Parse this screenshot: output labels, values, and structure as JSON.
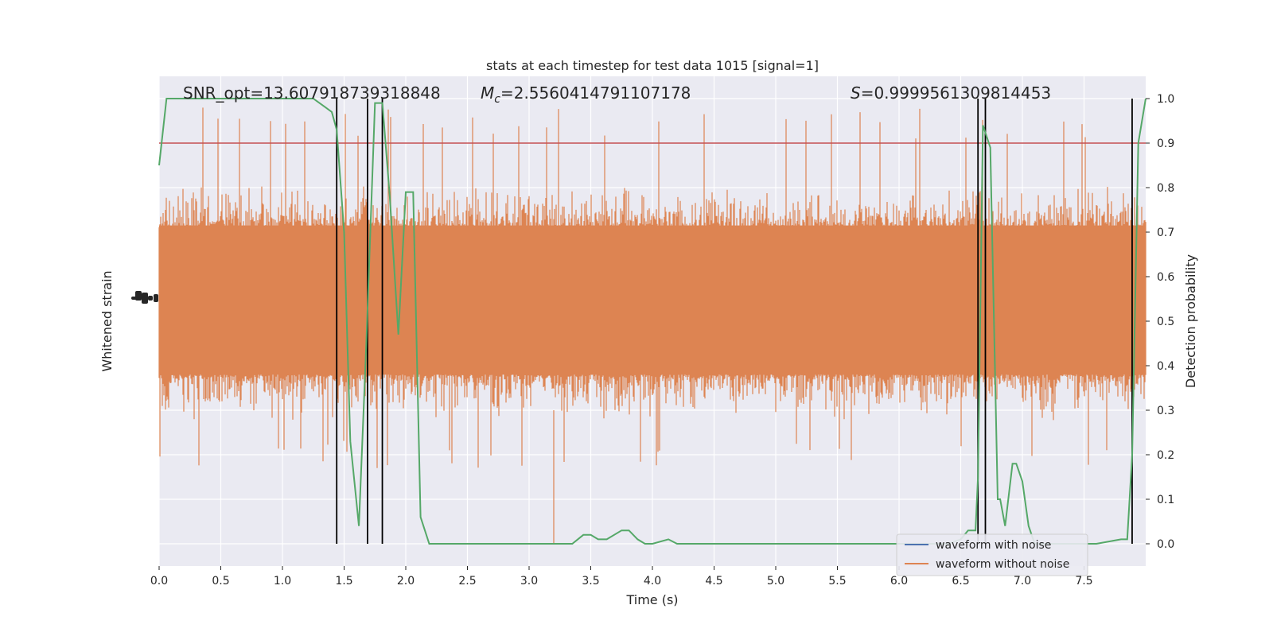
{
  "chart_data": {
    "type": "line",
    "title": "stats at each timestep for test data 1015 [signal=1]",
    "annotations": {
      "snr_text": "SNR_opt=13.607918739318848",
      "mc_symbol": "M",
      "mc_subscript": "c",
      "mc_value": "=2.5560414791107178",
      "s_symbol": "S",
      "s_value": "=0.9999561309814453"
    },
    "xlabel": "Time (s)",
    "ylabel_left": "Whitened strain",
    "ylabel_right": "Detection probability",
    "xlim": [
      0,
      8.0
    ],
    "ylim_right": [
      -0.05,
      1.05
    ],
    "x_ticks": [
      0.0,
      0.5,
      1.0,
      1.5,
      2.0,
      2.5,
      3.0,
      3.5,
      4.0,
      4.5,
      5.0,
      5.5,
      6.0,
      6.5,
      7.0,
      7.5
    ],
    "x_tick_labels": [
      "0.0",
      "0.5",
      "1.0",
      "1.5",
      "2.0",
      "2.5",
      "3.0",
      "3.5",
      "4.0",
      "4.5",
      "5.0",
      "5.5",
      "6.0",
      "6.5",
      "7.0",
      "7.5"
    ],
    "y_right_ticks": [
      0.0,
      0.1,
      0.2,
      0.3,
      0.4,
      0.5,
      0.6,
      0.7,
      0.8,
      0.9,
      1.0
    ],
    "y_right_tick_labels": [
      "0.0",
      "0.1",
      "0.2",
      "0.3",
      "0.4",
      "0.5",
      "0.6",
      "0.7",
      "0.8",
      "0.9",
      "1.0"
    ],
    "threshold": 0.9,
    "detection_lines_x": [
      1.44,
      1.69,
      1.81,
      6.64,
      6.7,
      7.89
    ],
    "legend": {
      "placement": "lower-right",
      "entries": [
        {
          "label": "waveform with noise",
          "color": "#4c72b0"
        },
        {
          "label": "waveform without noise",
          "color": "#dd8452"
        }
      ]
    },
    "series": [
      {
        "name": "waveform without noise",
        "color": "#dd8452",
        "kind": "noise-band",
        "core_range": [
          0.38,
          0.71
        ],
        "spike_range": [
          0.17,
          0.98
        ]
      },
      {
        "color": "#55a868",
        "x": [
          0.0,
          0.06,
          0.12,
          0.25,
          0.4,
          0.6,
          0.8,
          1.0,
          1.2,
          1.25,
          1.35,
          1.4,
          1.44,
          1.5,
          1.55,
          1.62,
          1.68,
          1.75,
          1.81,
          1.87,
          1.94,
          2.0,
          2.06,
          2.12,
          2.19,
          2.3,
          2.5,
          3.0,
          3.2,
          3.3,
          3.35,
          3.44,
          3.5,
          3.56,
          3.63,
          3.75,
          3.81,
          3.88,
          3.94,
          4.0,
          4.13,
          4.2,
          4.4,
          4.8,
          5.2,
          5.6,
          6.0,
          6.4,
          6.5,
          6.56,
          6.62,
          6.64,
          6.68,
          6.74,
          6.8,
          6.82,
          6.86,
          6.92,
          6.95,
          7.0,
          7.05,
          7.1,
          7.3,
          7.6,
          7.8,
          7.85,
          7.89,
          7.94,
          8.0
        ],
        "values": [
          0.85,
          1.0,
          1.0,
          1.0,
          1.0,
          1.0,
          1.0,
          1.0,
          1.0,
          1.0,
          0.98,
          0.97,
          0.93,
          0.7,
          0.23,
          0.04,
          0.45,
          0.99,
          0.99,
          0.78,
          0.47,
          0.79,
          0.79,
          0.06,
          0.0,
          0.0,
          0.0,
          0.0,
          0.0,
          0.0,
          0.0,
          0.02,
          0.02,
          0.01,
          0.01,
          0.03,
          0.03,
          0.01,
          0.0,
          0.0,
          0.01,
          0.0,
          0.0,
          0.0,
          0.0,
          0.0,
          0.0,
          0.0,
          0.01,
          0.03,
          0.03,
          0.15,
          0.94,
          0.89,
          0.1,
          0.1,
          0.04,
          0.18,
          0.18,
          0.14,
          0.04,
          0.0,
          0.0,
          0.0,
          0.01,
          0.01,
          0.2,
          0.9,
          1.0
        ]
      }
    ]
  }
}
